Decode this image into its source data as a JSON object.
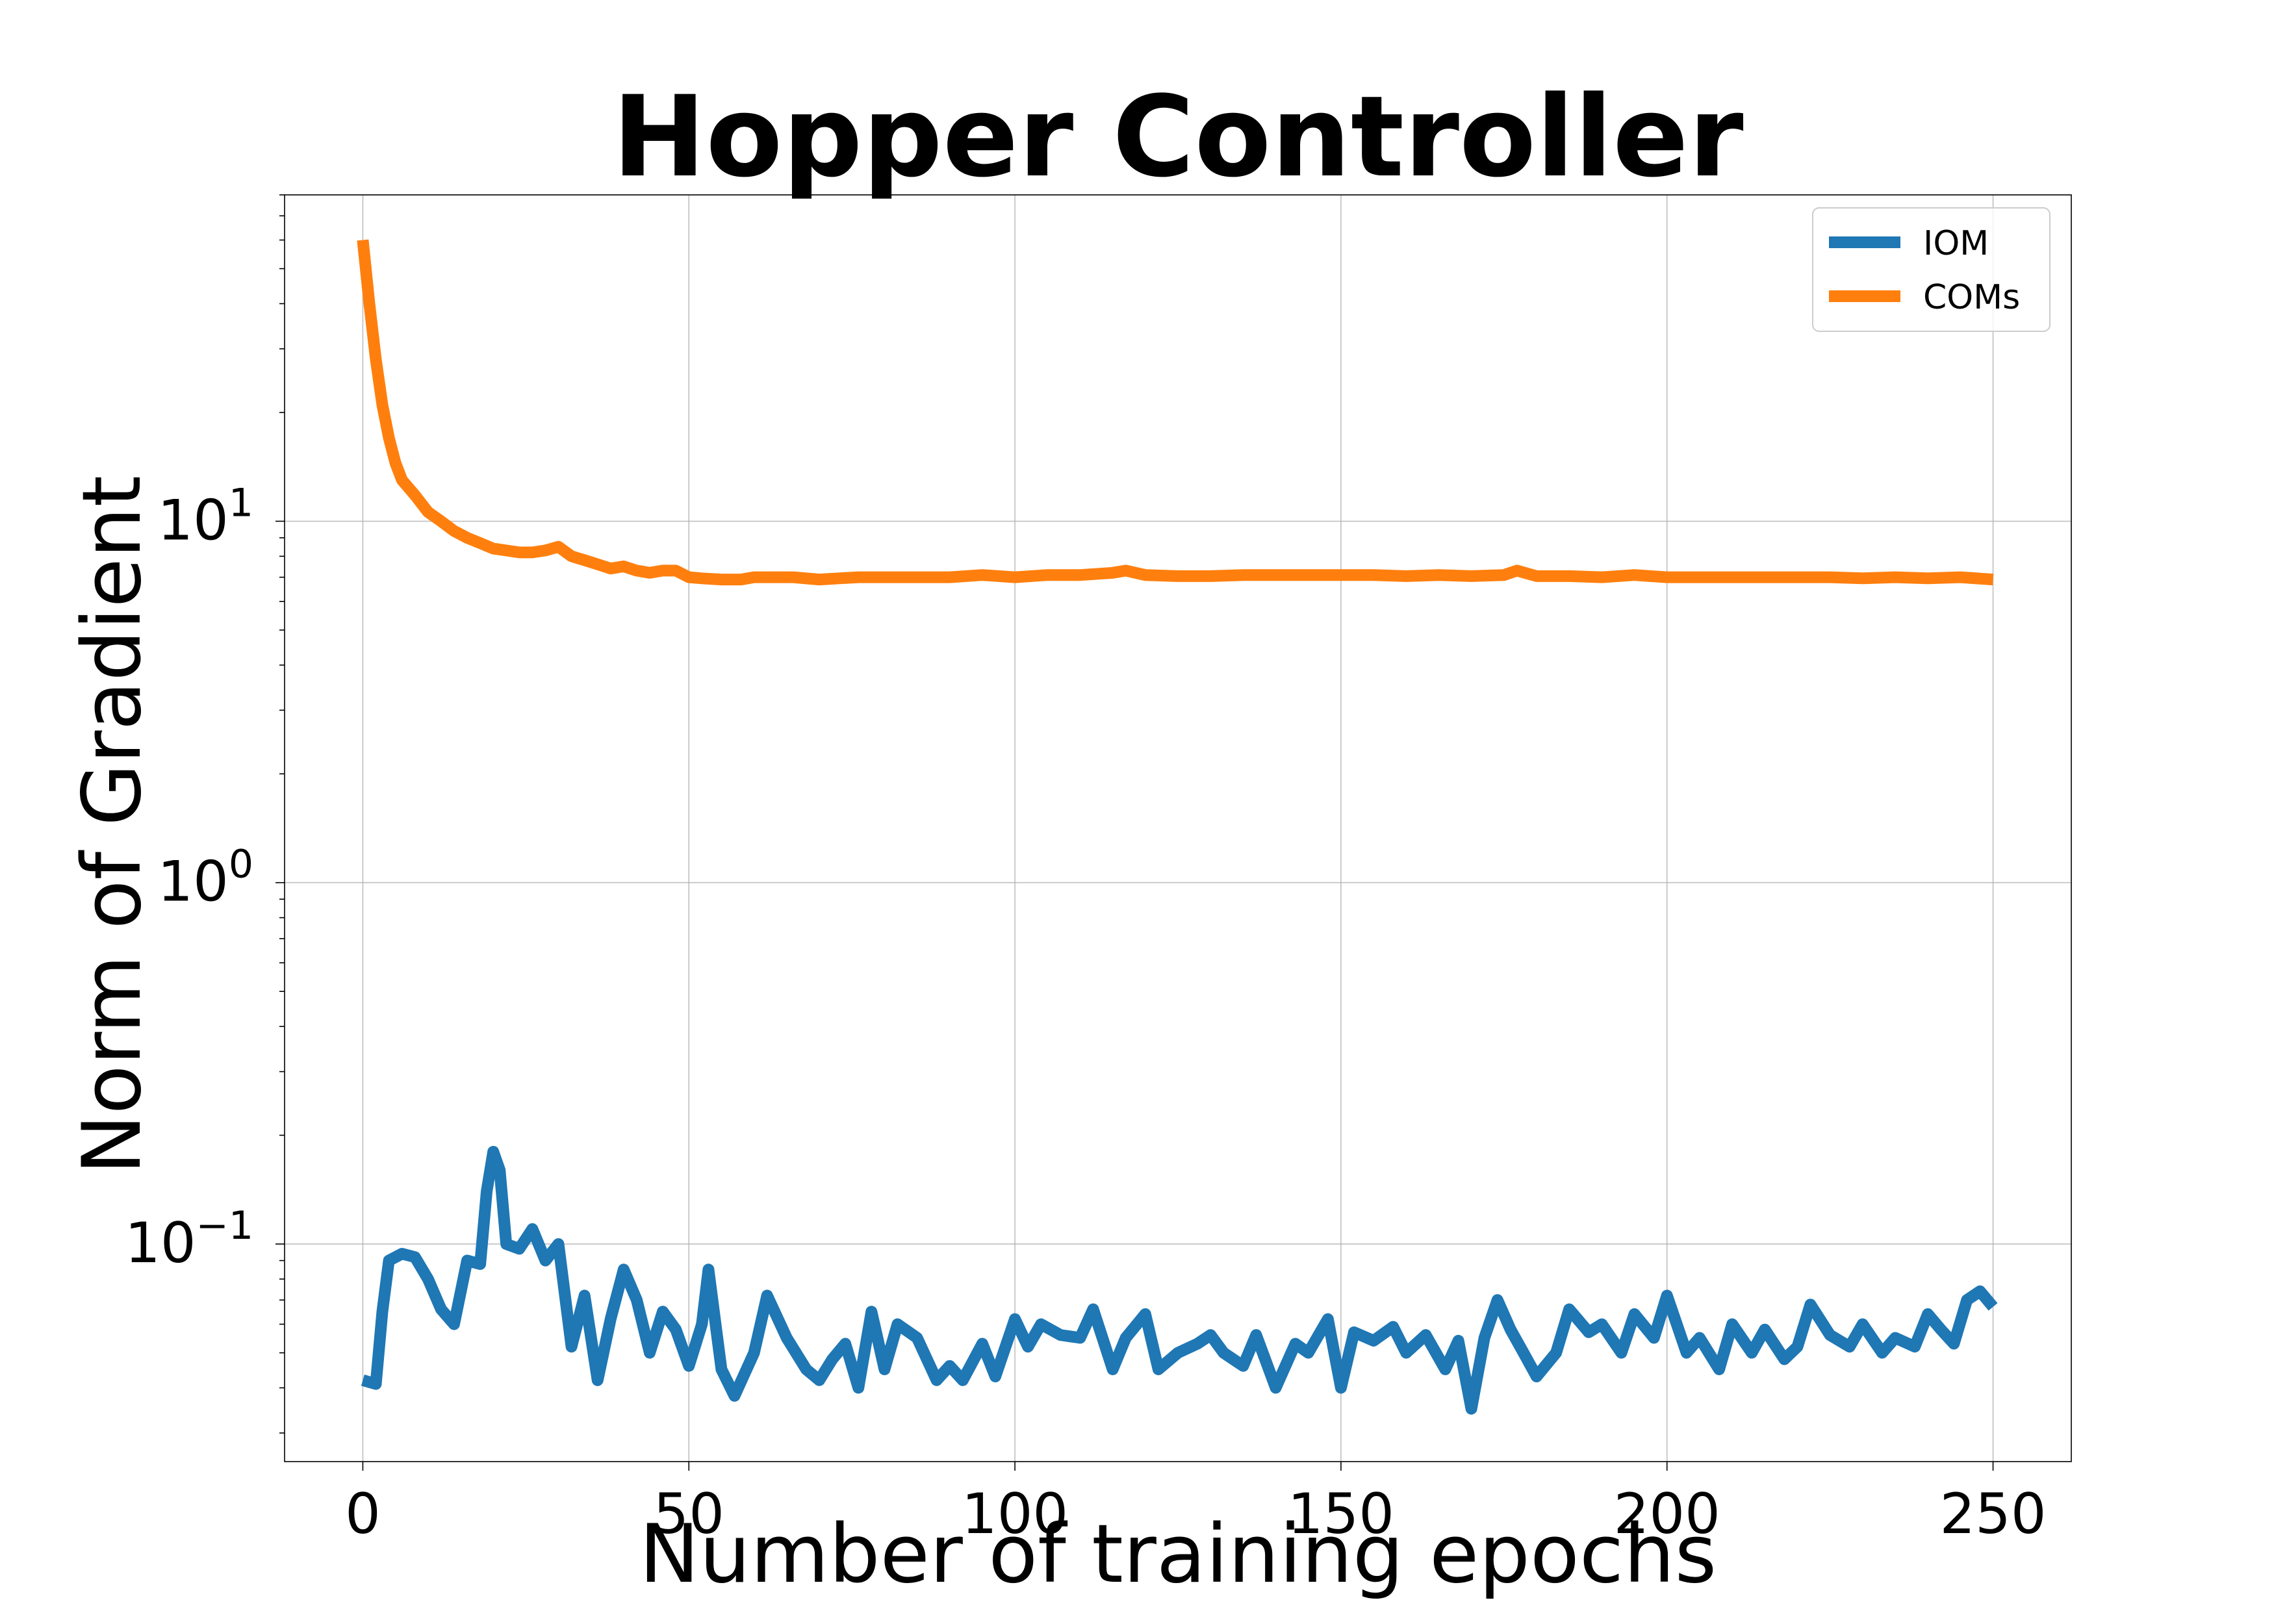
{
  "chart_data": {
    "type": "line",
    "title": "Hopper Controller",
    "xlabel": "Number of training epochs",
    "ylabel": "Norm of Gradient",
    "xlim": [
      -12,
      262
    ],
    "ylim": [
      0.025,
      80
    ],
    "yscale": "log",
    "grid": true,
    "legend_position": "top-right",
    "x_ticks": [
      0,
      50,
      100,
      150,
      200,
      250
    ],
    "y_major_ticks": [
      {
        "value": 0.1,
        "base": "10",
        "exp": "−1"
      },
      {
        "value": 1,
        "base": "10",
        "exp": "0"
      },
      {
        "value": 10,
        "base": "10",
        "exp": "1"
      }
    ],
    "series": [
      {
        "name": "IOM",
        "color": "#1f77b4",
        "x": [
          0,
          2,
          3,
          4,
          6,
          8,
          10,
          12,
          14,
          16,
          18,
          19,
          20,
          21,
          22,
          24,
          26,
          28,
          30,
          32,
          34,
          36,
          38,
          40,
          42,
          44,
          46,
          48,
          50,
          52,
          53,
          55,
          57,
          60,
          62,
          65,
          68,
          70,
          72,
          74,
          76,
          78,
          80,
          82,
          85,
          88,
          90,
          92,
          95,
          97,
          100,
          102,
          104,
          107,
          110,
          112,
          115,
          117,
          120,
          122,
          125,
          128,
          130,
          132,
          135,
          137,
          140,
          143,
          145,
          148,
          150,
          152,
          155,
          158,
          160,
          163,
          166,
          168,
          170,
          172,
          174,
          176,
          178,
          180,
          183,
          185,
          188,
          190,
          193,
          195,
          198,
          200,
          203,
          205,
          208,
          210,
          213,
          215,
          218,
          220,
          222,
          225,
          228,
          230,
          233,
          235,
          238,
          240,
          242,
          244,
          246,
          248,
          250
        ],
        "y": [
          0.042,
          0.041,
          0.065,
          0.09,
          0.094,
          0.092,
          0.08,
          0.066,
          0.06,
          0.09,
          0.088,
          0.14,
          0.18,
          0.16,
          0.1,
          0.097,
          0.11,
          0.09,
          0.1,
          0.052,
          0.072,
          0.042,
          0.062,
          0.085,
          0.07,
          0.05,
          0.065,
          0.058,
          0.046,
          0.06,
          0.085,
          0.045,
          0.038,
          0.05,
          0.072,
          0.055,
          0.045,
          0.042,
          0.048,
          0.053,
          0.04,
          0.065,
          0.045,
          0.06,
          0.055,
          0.042,
          0.046,
          0.042,
          0.053,
          0.043,
          0.062,
          0.052,
          0.06,
          0.056,
          0.055,
          0.066,
          0.045,
          0.055,
          0.064,
          0.045,
          0.05,
          0.053,
          0.056,
          0.05,
          0.046,
          0.056,
          0.04,
          0.053,
          0.05,
          0.062,
          0.04,
          0.057,
          0.054,
          0.059,
          0.05,
          0.056,
          0.045,
          0.054,
          0.035,
          0.055,
          0.07,
          0.058,
          0.05,
          0.043,
          0.05,
          0.066,
          0.057,
          0.06,
          0.05,
          0.064,
          0.055,
          0.072,
          0.05,
          0.055,
          0.045,
          0.06,
          0.05,
          0.058,
          0.048,
          0.052,
          0.068,
          0.056,
          0.052,
          0.06,
          0.05,
          0.055,
          0.052,
          0.064,
          0.058,
          0.053,
          0.07,
          0.074,
          0.067
        ]
      },
      {
        "name": "COMs",
        "color": "#ff7f0e",
        "x": [
          0,
          1,
          2,
          3,
          4,
          5,
          6,
          8,
          10,
          12,
          14,
          16,
          18,
          20,
          22,
          24,
          26,
          28,
          30,
          32,
          34,
          36,
          38,
          40,
          42,
          44,
          46,
          48,
          50,
          52,
          55,
          58,
          60,
          63,
          66,
          70,
          73,
          76,
          80,
          85,
          90,
          95,
          100,
          105,
          110,
          115,
          117,
          120,
          125,
          130,
          135,
          140,
          145,
          150,
          155,
          160,
          165,
          170,
          175,
          177,
          180,
          185,
          190,
          195,
          200,
          205,
          210,
          215,
          220,
          225,
          230,
          235,
          240,
          245,
          250
        ],
        "y": [
          60,
          40,
          28,
          21,
          17,
          14.5,
          13,
          11.8,
          10.6,
          10.0,
          9.4,
          9.0,
          8.7,
          8.4,
          8.3,
          8.2,
          8.2,
          8.3,
          8.5,
          8.0,
          7.8,
          7.6,
          7.4,
          7.5,
          7.3,
          7.2,
          7.3,
          7.3,
          7.0,
          6.95,
          6.9,
          6.9,
          7.0,
          7.0,
          7.0,
          6.9,
          6.95,
          7.0,
          7.0,
          7.0,
          7.0,
          7.1,
          7.0,
          7.1,
          7.1,
          7.2,
          7.3,
          7.1,
          7.05,
          7.05,
          7.1,
          7.1,
          7.1,
          7.1,
          7.1,
          7.05,
          7.1,
          7.05,
          7.1,
          7.3,
          7.05,
          7.05,
          7.0,
          7.1,
          7.0,
          7.0,
          7.0,
          7.0,
          7.0,
          7.0,
          6.95,
          7.0,
          6.95,
          7.0,
          6.9
        ]
      }
    ]
  }
}
